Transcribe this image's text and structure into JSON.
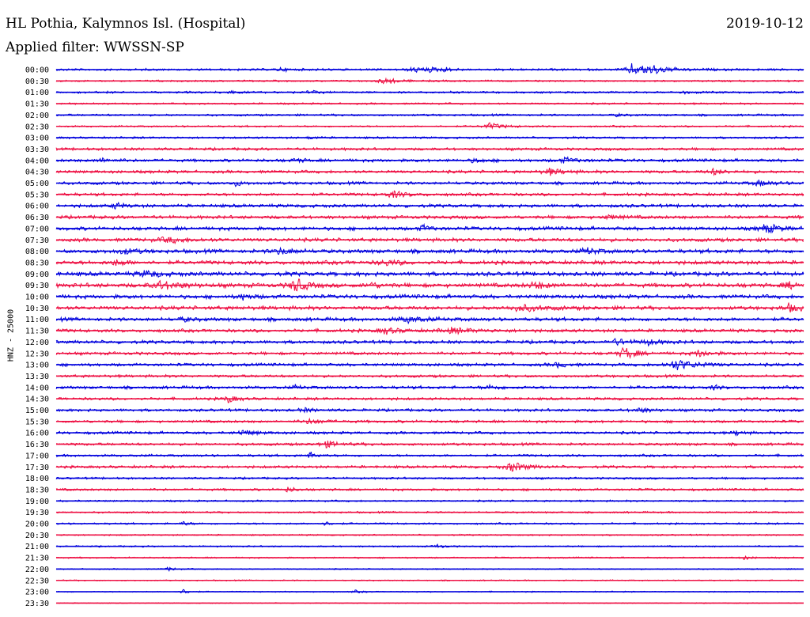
{
  "header": {
    "station": "HL Pothia, Kalymnos Isl. (Hospital)",
    "date": "2019-10-12",
    "filter": "Applied filter: WWSSN-SP"
  },
  "channel_label": "HNZ - 25000",
  "colors": {
    "odd_trace": "#0000dd",
    "even_trace": "#ee1144",
    "background": "#ffffff"
  },
  "chart_data": {
    "type": "line",
    "title": "HL Pothia, Kalymnos Isl. (Hospital)",
    "subtitle": "Applied filter: WWSSN-SP",
    "ylabel": "HNZ - 25000",
    "tick_labels": [
      "00:00",
      "00:30",
      "01:00",
      "01:30",
      "02:00",
      "02:30",
      "03:00",
      "03:30",
      "04:00",
      "04:30",
      "05:00",
      "05:30",
      "06:00",
      "06:30",
      "07:00",
      "07:30",
      "08:00",
      "08:30",
      "09:00",
      "09:30",
      "10:00",
      "10:30",
      "11:00",
      "11:30",
      "12:00",
      "12:30",
      "13:00",
      "13:30",
      "14:00",
      "14:30",
      "15:00",
      "15:30",
      "16:00",
      "16:30",
      "17:00",
      "17:30",
      "18:00",
      "18:30",
      "19:00",
      "19:30",
      "20:00",
      "20:30",
      "21:00",
      "21:30",
      "22:00",
      "22:30",
      "23:00",
      "23:30"
    ],
    "series": [
      {
        "noise": 0.15,
        "events": [
          [
            0.48,
            0.4,
            0.02
          ],
          [
            0.5,
            0.2,
            0.015
          ],
          [
            0.77,
            0.9,
            0.015
          ],
          [
            0.8,
            0.5,
            0.03
          ],
          [
            0.3,
            0.3,
            0.01
          ],
          [
            0.52,
            0.3,
            0.01
          ],
          [
            0.79,
            0.4,
            0.012
          ]
        ]
      },
      {
        "noise": 0.12,
        "events": [
          [
            0.44,
            0.5,
            0.018
          ]
        ]
      },
      {
        "noise": 0.14,
        "events": [
          [
            0.23,
            0.3,
            0.01
          ],
          [
            0.34,
            0.3,
            0.01
          ],
          [
            0.84,
            0.2,
            0.01
          ]
        ]
      },
      {
        "noise": 0.12,
        "events": []
      },
      {
        "noise": 0.14,
        "events": [
          [
            0.75,
            0.2,
            0.01
          ]
        ]
      },
      {
        "noise": 0.12,
        "events": [
          [
            0.58,
            0.5,
            0.02
          ]
        ]
      },
      {
        "noise": 0.14,
        "events": [
          [
            0.34,
            0.2,
            0.01
          ]
        ]
      },
      {
        "noise": 0.18,
        "events": []
      },
      {
        "noise": 0.2,
        "events": [
          [
            0.06,
            0.3,
            0.015
          ],
          [
            0.32,
            0.3,
            0.012
          ],
          [
            0.56,
            0.3,
            0.015
          ],
          [
            0.68,
            0.4,
            0.02
          ]
        ]
      },
      {
        "noise": 0.2,
        "events": [
          [
            0.66,
            0.5,
            0.02
          ],
          [
            0.88,
            0.5,
            0.015
          ]
        ]
      },
      {
        "noise": 0.2,
        "events": [
          [
            0.24,
            0.4,
            0.01
          ],
          [
            0.94,
            0.4,
            0.02
          ]
        ]
      },
      {
        "noise": 0.2,
        "events": [
          [
            0.45,
            0.5,
            0.02
          ]
        ]
      },
      {
        "noise": 0.22,
        "events": [
          [
            0.08,
            0.5,
            0.012
          ]
        ]
      },
      {
        "noise": 0.22,
        "events": [
          [
            0.74,
            0.3,
            0.02
          ]
        ]
      },
      {
        "noise": 0.24,
        "events": [
          [
            0.49,
            0.5,
            0.012
          ],
          [
            0.95,
            0.7,
            0.02
          ]
        ]
      },
      {
        "noise": 0.24,
        "events": [
          [
            0.15,
            0.4,
            0.03
          ]
        ]
      },
      {
        "noise": 0.26,
        "events": [
          [
            0.09,
            0.4,
            0.02
          ],
          [
            0.3,
            0.5,
            0.02
          ],
          [
            0.71,
            0.5,
            0.015
          ]
        ]
      },
      {
        "noise": 0.26,
        "events": [
          [
            0.08,
            0.4,
            0.02
          ],
          [
            0.44,
            0.4,
            0.02
          ]
        ]
      },
      {
        "noise": 0.28,
        "events": [
          [
            0.12,
            0.5,
            0.02
          ]
        ]
      },
      {
        "noise": 0.28,
        "events": [
          [
            0.14,
            0.6,
            0.03
          ],
          [
            0.32,
            1.2,
            0.015
          ],
          [
            0.42,
            0.4,
            0.015
          ],
          [
            0.64,
            0.5,
            0.02
          ],
          [
            0.98,
            0.5,
            0.015
          ]
        ]
      },
      {
        "noise": 0.26,
        "events": [
          [
            0.25,
            0.4,
            0.015
          ]
        ]
      },
      {
        "noise": 0.26,
        "events": [
          [
            0.62,
            0.5,
            0.03
          ],
          [
            0.98,
            0.6,
            0.015
          ]
        ]
      },
      {
        "noise": 0.24,
        "events": [
          [
            0.17,
            0.3,
            0.015
          ],
          [
            0.47,
            0.4,
            0.03
          ]
        ]
      },
      {
        "noise": 0.22,
        "events": [
          [
            0.44,
            0.5,
            0.02
          ],
          [
            0.53,
            0.4,
            0.03
          ]
        ]
      },
      {
        "noise": 0.22,
        "events": [
          [
            0.75,
            0.5,
            0.015
          ],
          [
            0.79,
            0.4,
            0.02
          ]
        ]
      },
      {
        "noise": 0.2,
        "events": [
          [
            0.76,
            1.1,
            0.015
          ],
          [
            0.86,
            0.6,
            0.015
          ]
        ]
      },
      {
        "noise": 0.2,
        "events": [
          [
            0.67,
            0.4,
            0.015
          ],
          [
            0.83,
            0.8,
            0.03
          ]
        ]
      },
      {
        "noise": 0.18,
        "events": []
      },
      {
        "noise": 0.2,
        "events": [
          [
            0.32,
            0.3,
            0.01
          ],
          [
            0.58,
            0.3,
            0.02
          ],
          [
            0.88,
            0.3,
            0.01
          ]
        ]
      },
      {
        "noise": 0.18,
        "events": [
          [
            0.23,
            0.6,
            0.012
          ]
        ]
      },
      {
        "noise": 0.18,
        "events": [
          [
            0.33,
            0.3,
            0.015
          ],
          [
            0.78,
            0.3,
            0.02
          ]
        ]
      },
      {
        "noise": 0.18,
        "events": [
          [
            0.34,
            0.4,
            0.02
          ]
        ]
      },
      {
        "noise": 0.18,
        "events": [
          [
            0.25,
            0.4,
            0.02
          ],
          [
            0.91,
            0.4,
            0.01
          ]
        ]
      },
      {
        "noise": 0.18,
        "events": [
          [
            0.36,
            0.5,
            0.02
          ]
        ]
      },
      {
        "noise": 0.16,
        "events": [
          [
            0.34,
            0.5,
            0.01
          ]
        ]
      },
      {
        "noise": 0.18,
        "events": [
          [
            0.61,
            0.8,
            0.02
          ]
        ]
      },
      {
        "noise": 0.14,
        "events": []
      },
      {
        "noise": 0.16,
        "events": [
          [
            0.31,
            0.4,
            0.01
          ]
        ]
      },
      {
        "noise": 0.12,
        "events": []
      },
      {
        "noise": 0.12,
        "events": []
      },
      {
        "noise": 0.12,
        "events": [
          [
            0.17,
            0.3,
            0.01
          ],
          [
            0.36,
            0.3,
            0.01
          ]
        ]
      },
      {
        "noise": 0.1,
        "events": []
      },
      {
        "noise": 0.1,
        "events": [
          [
            0.51,
            0.3,
            0.01
          ]
        ]
      },
      {
        "noise": 0.1,
        "events": [
          [
            0.92,
            0.3,
            0.01
          ]
        ]
      },
      {
        "noise": 0.08,
        "events": [
          [
            0.15,
            0.3,
            0.01
          ]
        ]
      },
      {
        "noise": 0.08,
        "events": []
      },
      {
        "noise": 0.08,
        "events": [
          [
            0.17,
            0.4,
            0.01
          ],
          [
            0.4,
            0.2,
            0.01
          ]
        ]
      },
      {
        "noise": 0.06,
        "events": []
      }
    ]
  }
}
